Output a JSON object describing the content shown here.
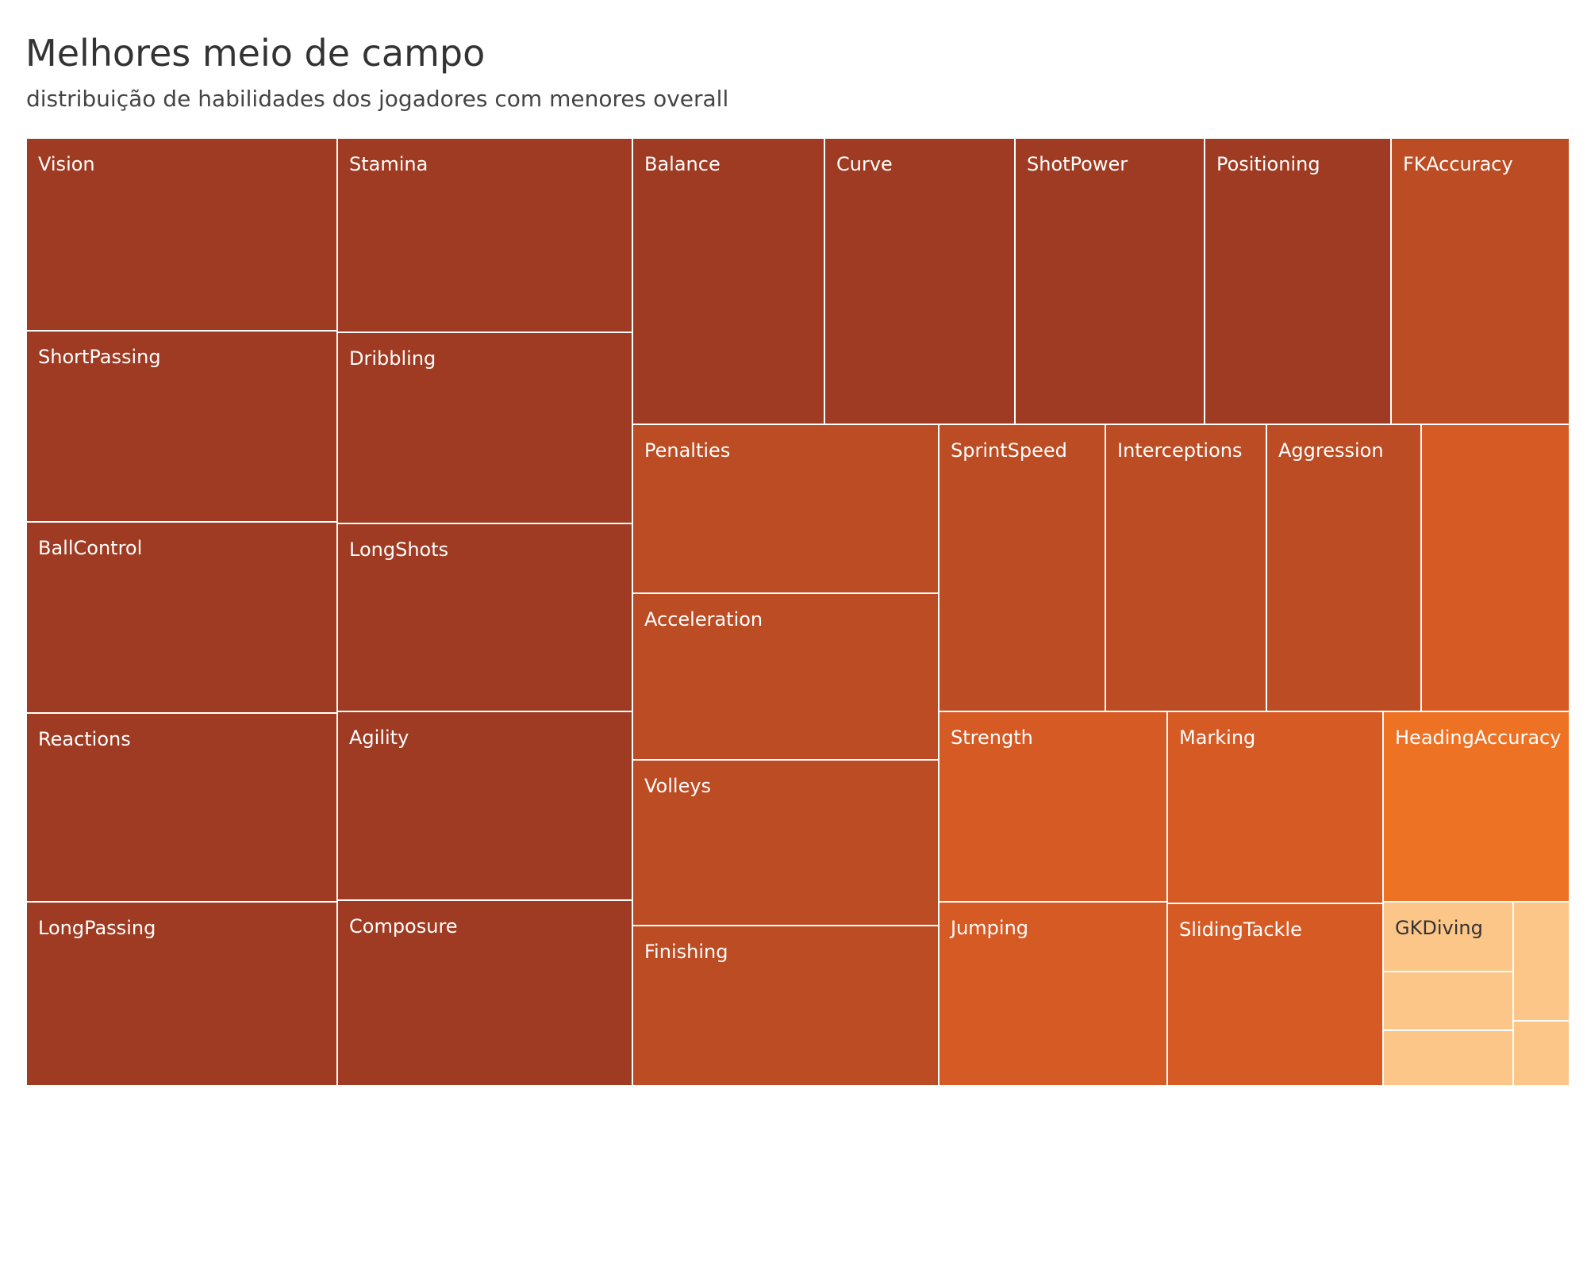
{
  "title": "Melhores meio de campo",
  "subtitle": "distribuição de habilidades dos jogadores com menores overall",
  "chart_data": {
    "type": "treemap",
    "title": "Melhores meio de campo",
    "subtitle": "distribuição de habilidades dos jogadores com menores overall",
    "colors": {
      "darkest": "#9f3b22",
      "dark": "#bb4c23",
      "mid": "#d55a24",
      "bright": "#ee7224",
      "light": "#fdc689"
    },
    "columns": [
      {
        "cells": [
          {
            "label": "Vision",
            "shade": "darkest"
          },
          {
            "label": "ShortPassing",
            "shade": "darkest"
          },
          {
            "label": "BallControl",
            "shade": "darkest"
          },
          {
            "label": "Reactions",
            "shade": "darkest"
          },
          {
            "label": "LongPassing",
            "shade": "darkest"
          }
        ]
      },
      {
        "cells": [
          {
            "label": "Stamina",
            "shade": "darkest"
          },
          {
            "label": "Dribbling",
            "shade": "darkest"
          },
          {
            "label": "LongShots",
            "shade": "darkest"
          },
          {
            "label": "Agility",
            "shade": "darkest"
          },
          {
            "label": "Composure",
            "shade": "darkest"
          }
        ]
      },
      {
        "topRow": [
          {
            "label": "Balance",
            "shade": "darkest"
          },
          {
            "label": "Curve",
            "shade": "darkest"
          },
          {
            "label": "ShotPower",
            "shade": "darkest"
          },
          {
            "label": "Positioning",
            "shade": "darkest"
          },
          {
            "label": "FKAccuracy",
            "shade": "dark"
          }
        ],
        "leftStack": [
          {
            "label": "Penalties",
            "shade": "dark"
          },
          {
            "label": "Acceleration",
            "shade": "dark"
          },
          {
            "label": "Volleys",
            "shade": "dark"
          },
          {
            "label": "Finishing",
            "shade": "dark"
          }
        ],
        "middleRow": [
          {
            "label": "SprintSpeed",
            "shade": "dark"
          },
          {
            "label": "Interceptions",
            "shade": "dark"
          },
          {
            "label": "Aggression",
            "shade": "dark"
          },
          {
            "label": "",
            "shade": "mid"
          }
        ],
        "bottomBlock": [
          {
            "label": "Strength",
            "shade": "mid"
          },
          {
            "label": "Jumping",
            "shade": "mid"
          },
          {
            "label": "Marking",
            "shade": "mid"
          },
          {
            "label": "SlidingTackle",
            "shade": "mid"
          },
          {
            "label": "HeadingAccuracy",
            "shade": "bright"
          },
          {
            "label": "GKDiving",
            "shade": "light"
          },
          {
            "label": "",
            "shade": "light"
          },
          {
            "label": "",
            "shade": "light"
          },
          {
            "label": "",
            "shade": "light"
          },
          {
            "label": "",
            "shade": "light"
          }
        ]
      }
    ]
  }
}
